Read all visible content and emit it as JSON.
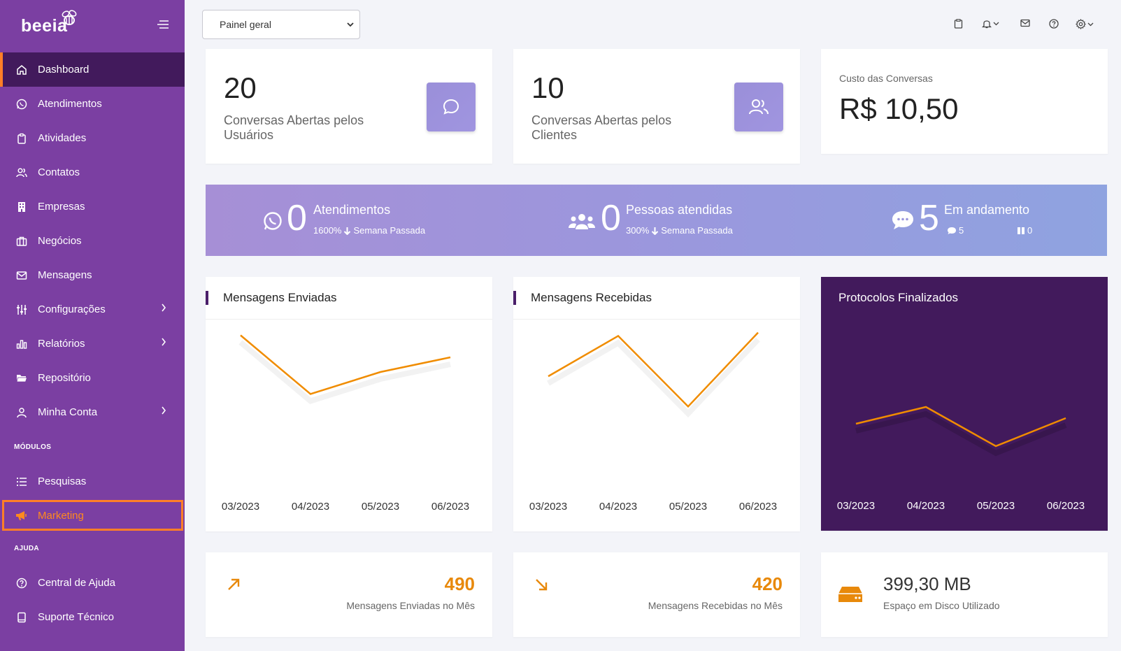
{
  "sidebar": {
    "logo": "beeia",
    "items": [
      {
        "label": "Dashboard",
        "icon": "home-icon"
      },
      {
        "label": "Atendimentos",
        "icon": "whatsapp-icon"
      },
      {
        "label": "Atividades",
        "icon": "clipboard-icon"
      },
      {
        "label": "Contatos",
        "icon": "users-icon"
      },
      {
        "label": "Empresas",
        "icon": "building-icon"
      },
      {
        "label": "Negócios",
        "icon": "briefcase-icon"
      },
      {
        "label": "Mensagens",
        "icon": "mail-icon"
      },
      {
        "label": "Configurações",
        "icon": "sliders-icon"
      },
      {
        "label": "Relatórios",
        "icon": "bar-chart-icon"
      },
      {
        "label": "Repositório",
        "icon": "folder-icon"
      },
      {
        "label": "Minha Conta",
        "icon": "user-icon"
      }
    ],
    "section_modules": "MÓDULOS",
    "module_items": [
      {
        "label": "Pesquisas",
        "icon": "list-icon"
      },
      {
        "label": "Marketing",
        "icon": "megaphone-icon"
      }
    ],
    "section_help": "AJUDA",
    "help_items": [
      {
        "label": "Central de Ajuda",
        "icon": "help-circle-icon"
      },
      {
        "label": "Suporte Técnico",
        "icon": "tablet-icon"
      }
    ]
  },
  "topbar": {
    "select_value": "Painel geral"
  },
  "stats": [
    {
      "value": "20",
      "label": "Conversas Abertas pelos Usuários"
    },
    {
      "value": "10",
      "label": "Conversas Abertas pelos Clientes"
    },
    {
      "label": "Custo das Conversas",
      "value": "R$ 10,50"
    }
  ],
  "banner": {
    "atendimentos": {
      "value": "0",
      "title": "Atendimentos",
      "pct": "1600%",
      "sub": "Semana Passada"
    },
    "pessoas": {
      "value": "0",
      "title": "Pessoas atendidas",
      "pct": "300%",
      "sub": "Semana Passada"
    },
    "andamento": {
      "value": "5",
      "title": "Em andamento",
      "chat_count": "5",
      "paused_count": "0"
    }
  },
  "charts": [
    {
      "title": "Mensagens Enviadas"
    },
    {
      "title": "Mensagens Recebidas"
    },
    {
      "title": "Protocolos Finalizados"
    }
  ],
  "chart_data": [
    {
      "type": "line",
      "title": "Mensagens Enviadas",
      "x": [
        "03/2023",
        "04/2023",
        "05/2023",
        "06/2023"
      ],
      "series": [
        {
          "values": [
            490,
            250,
            340,
            400
          ]
        }
      ],
      "color": "#f08c00"
    },
    {
      "type": "line",
      "title": "Mensagens Recebidas",
      "x": [
        "03/2023",
        "04/2023",
        "05/2023",
        "06/2023"
      ],
      "series": [
        {
          "values": [
            350,
            470,
            260,
            480
          ]
        }
      ],
      "color": "#f08c00"
    },
    {
      "type": "line",
      "title": "Protocolos Finalizados",
      "x": [
        "03/2023",
        "04/2023",
        "05/2023",
        "06/2023"
      ],
      "series": [
        {
          "values": [
            190,
            220,
            150,
            200
          ]
        }
      ],
      "color": "#f08c00",
      "background": "#421a5c"
    }
  ],
  "bottom": [
    {
      "value": "490",
      "label": "Mensagens Enviadas no Mês",
      "icon": "arrow-up-right-icon"
    },
    {
      "value": "420",
      "label": "Mensagens Recebidas no Mês",
      "icon": "arrow-down-right-icon"
    },
    {
      "value": "399,30 MB",
      "label": "Espaço em Disco Utilizado",
      "icon": "hard-drive-icon"
    }
  ]
}
